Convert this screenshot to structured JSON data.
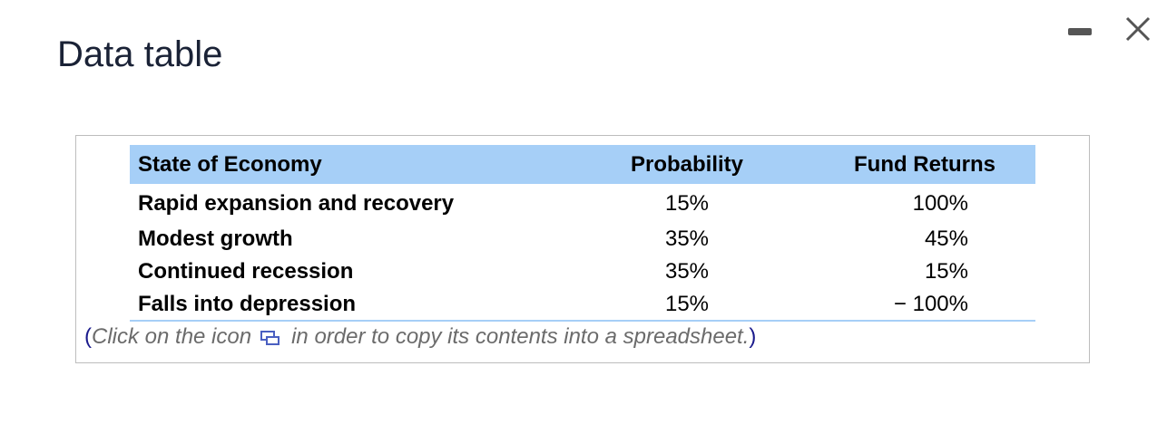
{
  "header": {
    "title": "Data table"
  },
  "table": {
    "columns": [
      "State of Economy",
      "Probability",
      "Fund Returns"
    ],
    "rows": [
      [
        "Rapid expansion and recovery",
        "15%",
        "100%"
      ],
      [
        "Modest growth",
        "35%",
        "45%"
      ],
      [
        "Continued recession",
        "35%",
        "15%"
      ],
      [
        "Falls into depression",
        "15%",
        "− 100%"
      ]
    ]
  },
  "note": {
    "open": "(",
    "before": "Click on the icon",
    "after": "in order to copy its contents into a spreadsheet.",
    "close": ")"
  }
}
